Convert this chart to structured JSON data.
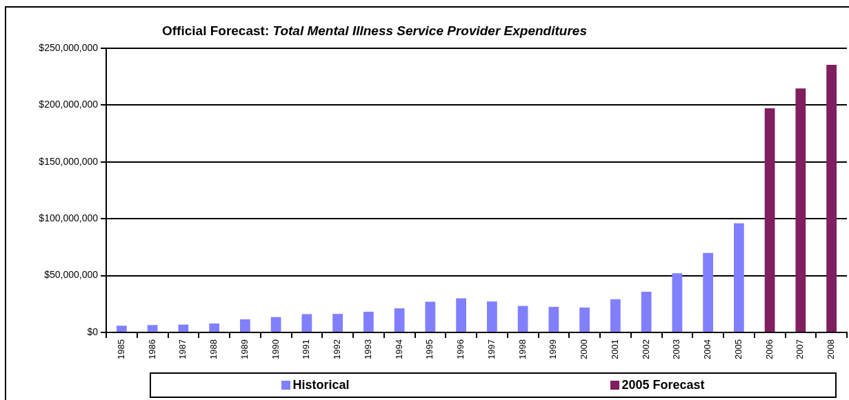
{
  "chart_data": {
    "type": "bar",
    "title": "Official Forecast: Total Mental Illness Service Provider Expenditures",
    "categories": [
      "1985",
      "1986",
      "1987",
      "1988",
      "1989",
      "1990",
      "1991",
      "1992",
      "1993",
      "1994",
      "1995",
      "1996",
      "1997",
      "1998",
      "1999",
      "2000",
      "2001",
      "2002",
      "2003",
      "2004",
      "2005",
      "2006",
      "2007",
      "2008"
    ],
    "series": [
      {
        "name": "Historical",
        "color": "#8080ff",
        "values": [
          5900000,
          6500000,
          6900000,
          7900000,
          11500000,
          13500000,
          16100000,
          16300000,
          18200000,
          21200000,
          27000000,
          30000000,
          27200000,
          23300000,
          22500000,
          21900000,
          29200000,
          35800000,
          52100000,
          69900000,
          96000000,
          null,
          null,
          null
        ]
      },
      {
        "name": "2005 Forecast",
        "color": "#7f1f5f",
        "values": [
          null,
          null,
          null,
          null,
          null,
          null,
          null,
          null,
          null,
          null,
          null,
          null,
          null,
          null,
          null,
          null,
          null,
          null,
          null,
          null,
          null,
          197200000,
          214600000,
          235400000
        ]
      }
    ],
    "ylim": [
      0,
      250000000
    ],
    "yticks": [
      {
        "value": 0,
        "label": "$0"
      },
      {
        "value": 50000000,
        "label": "$50,000,000"
      },
      {
        "value": 100000000,
        "label": "$100,000,000"
      },
      {
        "value": 150000000,
        "label": "$150,000,000"
      },
      {
        "value": 200000000,
        "label": "$200,000,000"
      },
      {
        "value": 250000000,
        "label": "$250,000,000"
      }
    ],
    "grid": "y",
    "legend": "bottom"
  }
}
